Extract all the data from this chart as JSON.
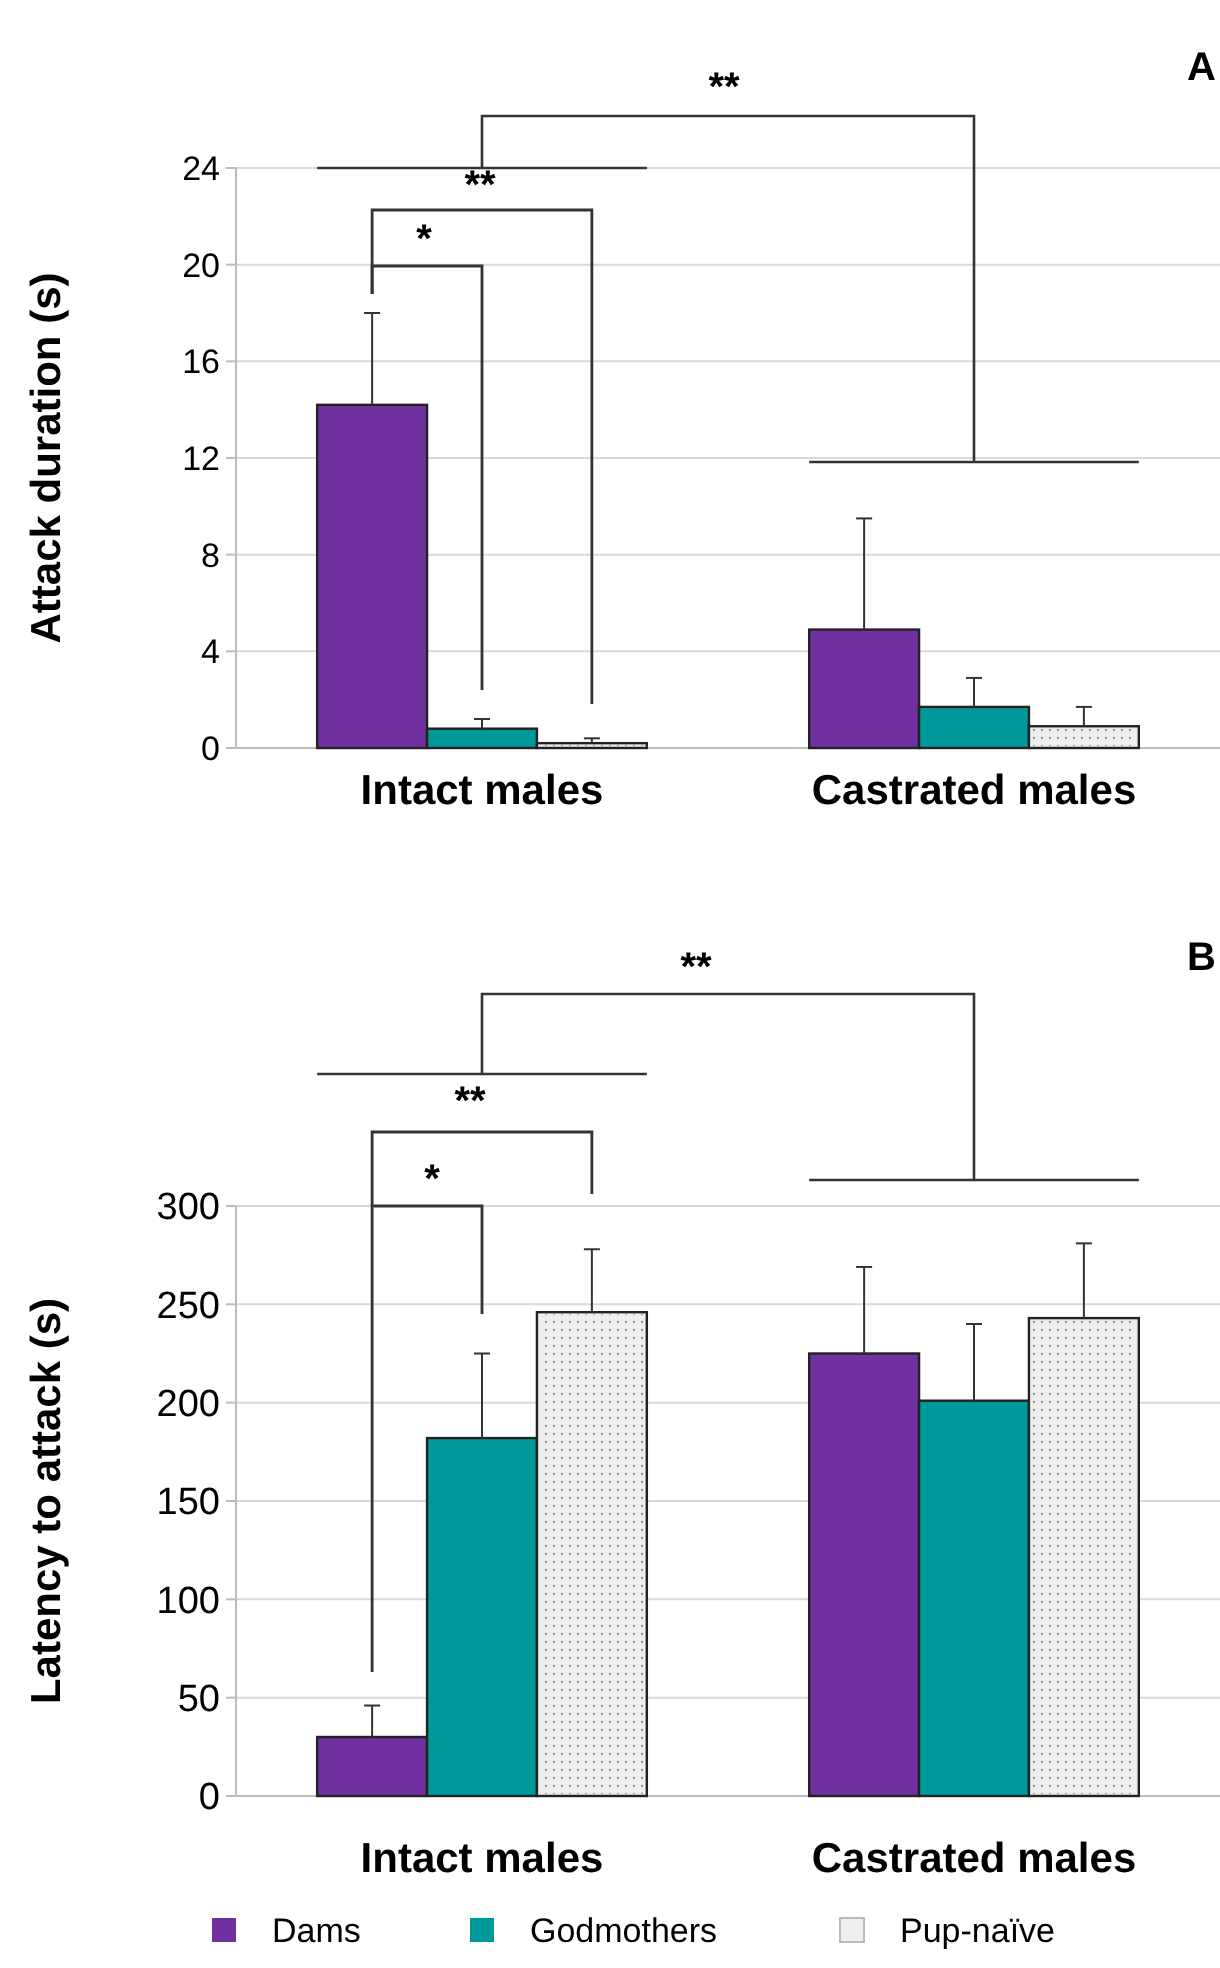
{
  "chart_data": [
    {
      "type": "bar",
      "title": "A",
      "ylabel": "Attack duration (s)",
      "categories": [
        "Intact males",
        "Castrated males"
      ],
      "ylim": [
        0,
        24
      ],
      "yticks": [
        0,
        4,
        8,
        12,
        16,
        20,
        24
      ],
      "grid": "y",
      "legend": false,
      "series": [
        {
          "color": "#7030a0",
          "values": [
            14.2,
            4.9
          ],
          "errors": [
            [
              14.2,
              18
            ],
            [
              4.9,
              9.5
            ]
          ]
        },
        {
          "color": "#009999",
          "values": [
            0.8,
            1.7
          ],
          "errors": [
            [
              0.8,
              1.2
            ],
            [
              1.7,
              2.9
            ]
          ]
        },
        {
          "color": "#eeeeee",
          "values": [
            0.2,
            0.9
          ],
          "errors": [
            [
              0.2,
              0.4
            ],
            [
              0.9,
              1.7
            ]
          ]
        }
      ],
      "annotations": [
        "**",
        "**",
        "*"
      ]
    },
    {
      "type": "bar",
      "title": "B",
      "ylabel": "Latency to attack (s)",
      "categories": [
        "Intact males",
        "Castrated males"
      ],
      "ylim": [
        0,
        300
      ],
      "yticks": [
        0,
        50,
        100,
        150,
        200,
        250,
        300
      ],
      "grid": "y",
      "legend": "bottom",
      "series": [
        {
          "name": "Dams",
          "color": "#7030a0",
          "values": [
            30,
            225
          ],
          "errors": [
            [
              30,
              46
            ],
            [
              225,
              269
            ]
          ]
        },
        {
          "name": "Godmothers",
          "color": "#009999",
          "values": [
            182,
            201
          ],
          "errors": [
            [
              182,
              225
            ],
            [
              201,
              240
            ]
          ]
        },
        {
          "name": "Pup-naïve",
          "color": "#eeeeee",
          "values": [
            246,
            243
          ],
          "errors": [
            [
              246,
              278
            ],
            [
              243,
              281
            ]
          ]
        }
      ],
      "annotations": [
        "**",
        "**",
        "*"
      ]
    }
  ]
}
